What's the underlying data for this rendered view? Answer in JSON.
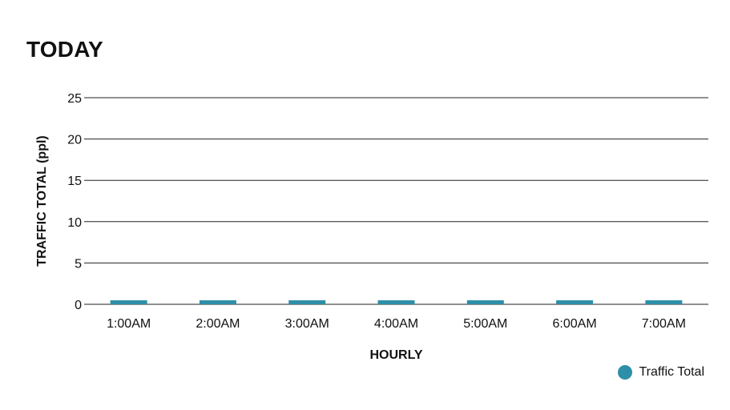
{
  "chart_data": {
    "type": "bar",
    "title": "TODAY",
    "xlabel": "HOURLY",
    "ylabel": "TRAFFIC TOTAL (ppl)",
    "categories": [
      "1:00AM",
      "2:00AM",
      "3:00AM",
      "4:00AM",
      "5:00AM",
      "6:00AM",
      "7:00AM"
    ],
    "series": [
      {
        "name": "Traffic Total",
        "values": [
          0,
          0,
          0,
          0,
          0,
          0,
          0
        ],
        "color": "#2e8fa8"
      }
    ],
    "ylim": [
      0,
      25
    ],
    "yticks": [
      0,
      5,
      10,
      15,
      20,
      25
    ],
    "grid": true,
    "legend_position": "bottom-right"
  }
}
